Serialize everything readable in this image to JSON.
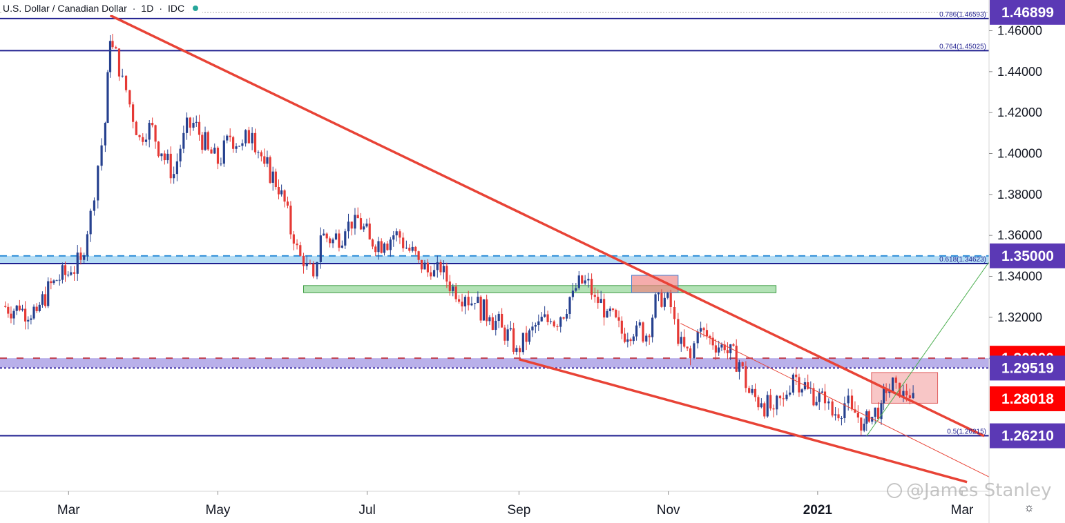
{
  "header": {
    "symbol": "U.S. Dollar / Canadian Dollar",
    "interval": "1D",
    "exchange": "IDC",
    "status_color": "#26a69a"
  },
  "watermark": "@James Stanley",
  "colors": {
    "candle_up": "#26418f",
    "candle_down": "#e53935",
    "trendline": "#e84336",
    "fib_line": "#1f1f8f",
    "zone_blue": "#5ab4e8",
    "zone_green": "#7fce84",
    "zone_red": "#f08080",
    "zone_purple": "#7f6fd8",
    "label_purple": "#5b39b5",
    "label_red": "#ff0000"
  },
  "chart_data": {
    "type": "candlestick",
    "ylim": [
      1.235,
      1.475
    ],
    "y_ticks": [
      "1.46000",
      "1.44000",
      "1.42000",
      "1.40000",
      "1.38000",
      "1.36000",
      "1.34000",
      "1.32000",
      "1.30000"
    ],
    "x_ticks": [
      "Mar",
      "May",
      "Jul",
      "Sep",
      "Nov",
      "2021",
      "Mar"
    ],
    "x_tick_dates": [
      "2020-03-01",
      "2020-05-01",
      "2020-07-01",
      "2020-09-01",
      "2020-11-01",
      "2021-01-01",
      "2021-03-01"
    ],
    "x_range": [
      "2020-02-02",
      "2021-03-12"
    ],
    "price_labels": [
      {
        "value": "1.46899",
        "color": "#5b39b5"
      },
      {
        "value": "1.35000",
        "color": "#5b39b5"
      },
      {
        "value": "1.30000",
        "color": "#ff0000"
      },
      {
        "value": "1.29519",
        "color": "#5b39b5"
      },
      {
        "value": "1.28018",
        "color": "#ff0000"
      },
      {
        "value": "1.26210",
        "color": "#5b39b5"
      }
    ],
    "fib_levels": [
      {
        "label": "0.786(1.46593)",
        "value": 1.46593
      },
      {
        "label": "0.764(1.45025)",
        "value": 1.45025
      },
      {
        "label": "0.618(1.34623)",
        "value": 1.34623
      },
      {
        "label": "0.5(1.26215)",
        "value": 1.26215
      }
    ],
    "closes": [
      [
        "2020-02-03",
        1.3255
      ],
      [
        "2020-02-10",
        1.3235
      ],
      [
        "2020-02-17",
        1.323
      ],
      [
        "2020-02-24",
        1.338
      ],
      [
        "2020-03-02",
        1.342
      ],
      [
        "2020-03-06",
        1.348
      ],
      [
        "2020-03-10",
        1.372
      ],
      [
        "2020-03-13",
        1.394
      ],
      [
        "2020-03-16",
        1.415
      ],
      [
        "2020-03-18",
        1.455
      ],
      [
        "2020-03-19",
        1.452
      ],
      [
        "2020-03-23",
        1.438
      ],
      [
        "2020-03-26",
        1.424
      ],
      [
        "2020-03-30",
        1.408
      ],
      [
        "2020-04-03",
        1.415
      ],
      [
        "2020-04-08",
        1.4
      ],
      [
        "2020-04-13",
        1.39
      ],
      [
        "2020-04-17",
        1.41
      ],
      [
        "2020-04-21",
        1.415
      ],
      [
        "2020-04-27",
        1.402
      ],
      [
        "2020-05-01",
        1.395
      ],
      [
        "2020-05-06",
        1.408
      ],
      [
        "2020-05-11",
        1.405
      ],
      [
        "2020-05-15",
        1.41
      ],
      [
        "2020-05-20",
        1.395
      ],
      [
        "2020-05-27",
        1.382
      ],
      [
        "2020-06-01",
        1.356
      ],
      [
        "2020-06-05",
        1.345
      ],
      [
        "2020-06-09",
        1.34
      ],
      [
        "2020-06-12",
        1.36
      ],
      [
        "2020-06-17",
        1.358
      ],
      [
        "2020-06-22",
        1.362
      ],
      [
        "2020-06-26",
        1.37
      ],
      [
        "2020-07-02",
        1.358
      ],
      [
        "2020-07-08",
        1.356
      ],
      [
        "2020-07-13",
        1.362
      ],
      [
        "2020-07-17",
        1.354
      ],
      [
        "2020-07-22",
        1.348
      ],
      [
        "2020-07-27",
        1.34
      ],
      [
        "2020-07-31",
        1.342
      ],
      [
        "2020-08-05",
        1.335
      ],
      [
        "2020-08-10",
        1.33
      ],
      [
        "2020-08-14",
        1.327
      ],
      [
        "2020-08-20",
        1.32
      ],
      [
        "2020-08-25",
        1.315
      ],
      [
        "2020-08-31",
        1.305
      ],
      [
        "2020-09-04",
        1.308
      ],
      [
        "2020-09-09",
        1.318
      ],
      [
        "2020-09-14",
        1.318
      ],
      [
        "2020-09-18",
        1.32
      ],
      [
        "2020-09-23",
        1.333
      ],
      [
        "2020-09-28",
        1.338
      ],
      [
        "2020-10-02",
        1.33
      ],
      [
        "2020-10-07",
        1.323
      ],
      [
        "2020-10-13",
        1.312
      ],
      [
        "2020-10-19",
        1.316
      ],
      [
        "2020-10-23",
        1.311
      ],
      [
        "2020-10-28",
        1.332
      ],
      [
        "2020-11-02",
        1.325
      ],
      [
        "2020-11-05",
        1.307
      ],
      [
        "2020-11-10",
        1.3
      ],
      [
        "2020-11-13",
        1.313
      ],
      [
        "2020-11-18",
        1.31
      ],
      [
        "2020-11-24",
        1.304
      ],
      [
        "2020-11-30",
        1.298
      ],
      [
        "2020-12-04",
        1.283
      ],
      [
        "2020-12-09",
        1.278
      ],
      [
        "2020-12-14",
        1.275
      ],
      [
        "2020-12-18",
        1.28
      ],
      [
        "2020-12-22",
        1.292
      ],
      [
        "2020-12-28",
        1.285
      ],
      [
        "2021-01-04",
        1.278
      ],
      [
        "2021-01-07",
        1.272
      ],
      [
        "2021-01-12",
        1.278
      ],
      [
        "2021-01-15",
        1.275
      ],
      [
        "2021-01-20",
        1.268
      ],
      [
        "2021-01-22",
        1.269
      ],
      [
        "2021-01-27",
        1.278
      ],
      [
        "2021-01-29",
        1.283
      ],
      [
        "2021-02-02",
        1.288
      ],
      [
        "2021-02-05",
        1.284
      ],
      [
        "2021-02-09",
        1.283
      ]
    ]
  }
}
